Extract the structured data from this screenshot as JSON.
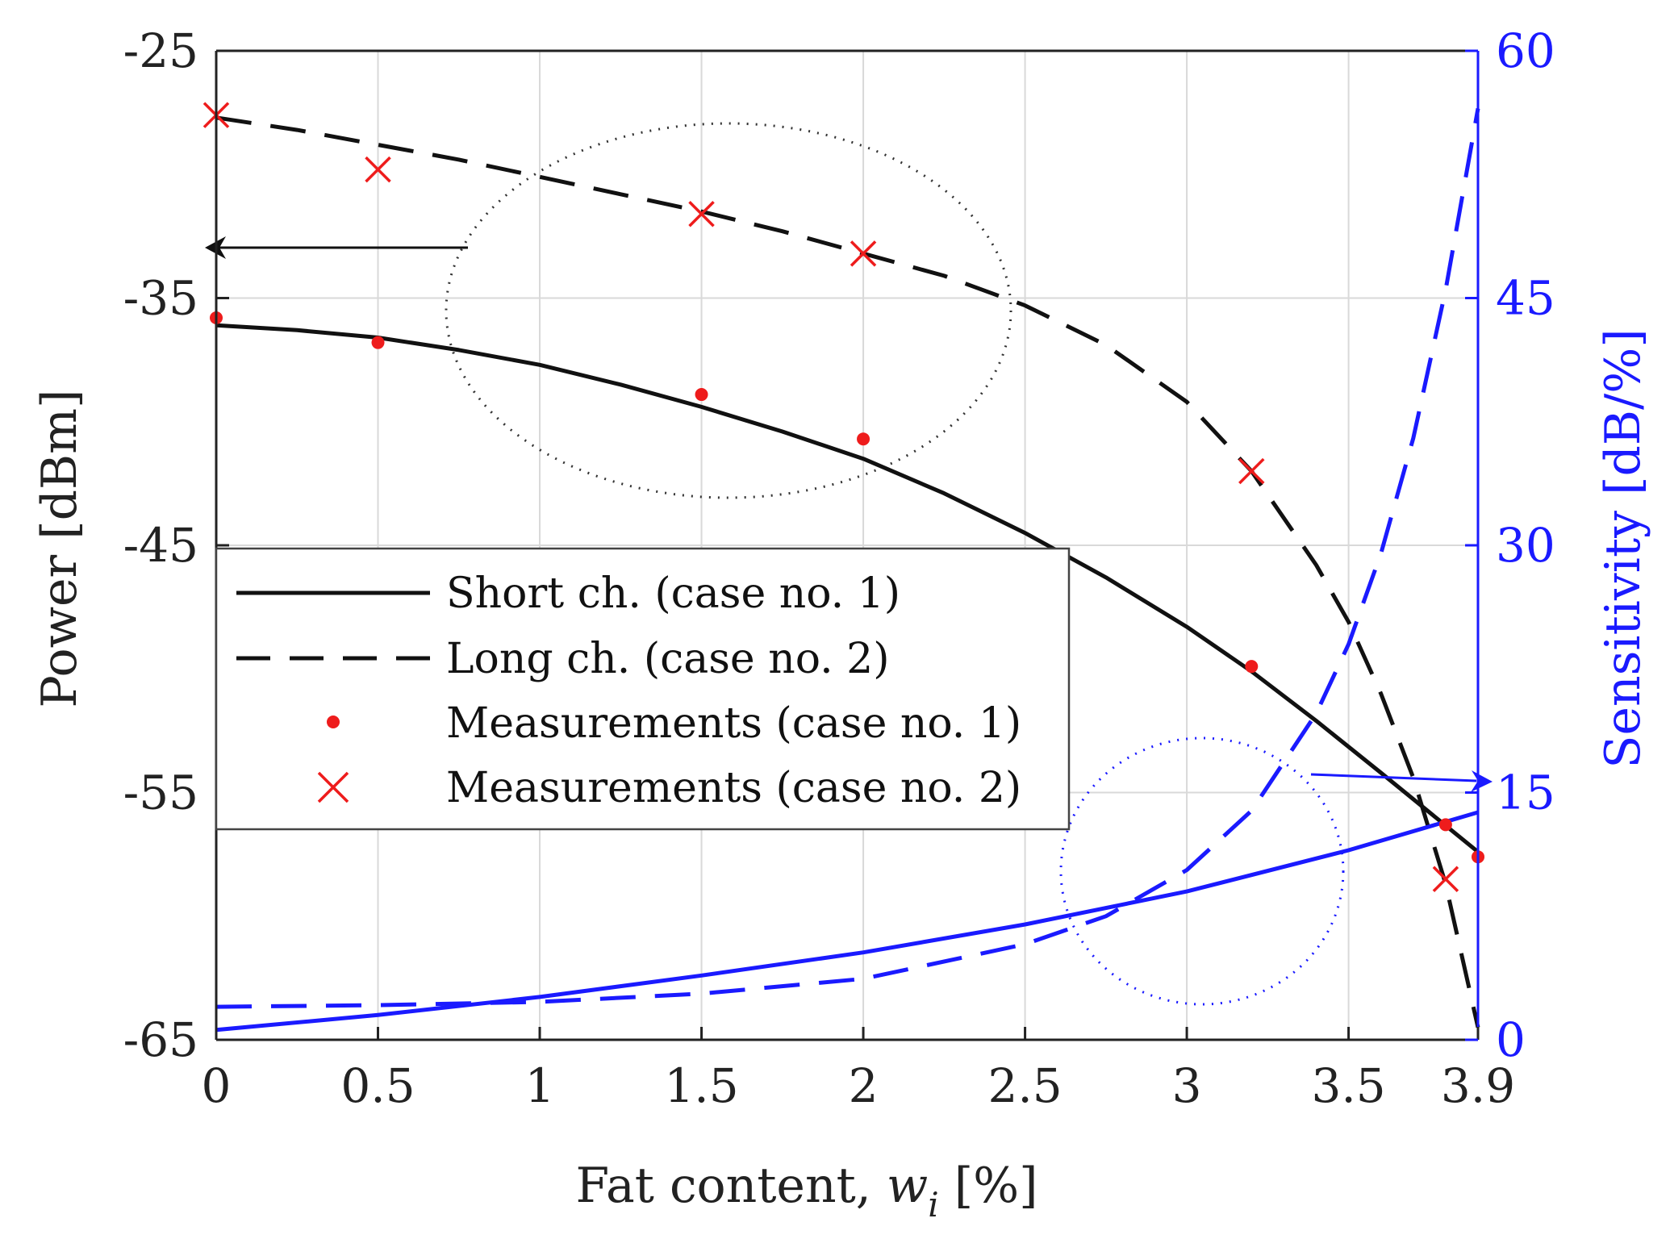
{
  "colors": {
    "black": "#111111",
    "blue": "#1a1aff",
    "red": "#ee1c1c",
    "grid": "#d9d9d9",
    "axis": "#222222"
  },
  "chart_data": {
    "type": "line",
    "xlabel_prefix": "Fat content, ",
    "xlabel_var": "w",
    "xlabel_sub": "i",
    "xlabel_suffix": " [%]",
    "ylabel_left": "Power [dBm]",
    "ylabel_right": "Sensitivity [dB/%]",
    "xlim": [
      0,
      3.9
    ],
    "ylim_left": [
      -65,
      -25
    ],
    "ylim_right": [
      0,
      60
    ],
    "x_ticks": [
      0,
      0.5,
      1,
      1.5,
      2,
      2.5,
      3,
      3.5,
      3.9
    ],
    "x_tick_labels": [
      "0",
      "0.5",
      "1",
      "1.5",
      "2",
      "2.5",
      "3",
      "3.5",
      "3.9"
    ],
    "y_left_ticks": [
      -25,
      -35,
      -45,
      -55,
      -65
    ],
    "y_left_tick_labels": [
      "-25",
      "-35",
      "-45",
      "-55",
      "-65"
    ],
    "y_right_ticks": [
      60,
      45,
      30,
      15,
      0
    ],
    "y_right_tick_labels": [
      "60",
      "45",
      "30",
      "15",
      "0"
    ],
    "grid": true,
    "legend_position": "center-left",
    "legend": [
      {
        "label": "Short ch. (case no. 1)",
        "style": "solid-line"
      },
      {
        "label": "Long ch. (case no. 2)",
        "style": "dashed-line"
      },
      {
        "label": "Measurements (case no. 1)",
        "style": "red-dot"
      },
      {
        "label": "Measurements (case no. 2)",
        "style": "red-cross"
      }
    ],
    "series": [
      {
        "name": "Short ch. (case no. 1) power",
        "axis": "left",
        "style": "solid",
        "color": "#111111",
        "x": [
          0,
          0.25,
          0.5,
          0.75,
          1.0,
          1.25,
          1.5,
          1.75,
          2.0,
          2.25,
          2.5,
          2.75,
          3.0,
          3.2,
          3.4,
          3.6,
          3.75,
          3.9
        ],
        "y": [
          -36.1,
          -36.3,
          -36.6,
          -37.1,
          -37.7,
          -38.5,
          -39.4,
          -40.4,
          -41.5,
          -42.9,
          -44.5,
          -46.3,
          -48.3,
          -50.1,
          -52.1,
          -54.2,
          -55.8,
          -57.4
        ]
      },
      {
        "name": "Long ch. (case no. 2) power",
        "axis": "left",
        "style": "dashed",
        "color": "#111111",
        "x": [
          0,
          0.25,
          0.5,
          0.75,
          1.0,
          1.25,
          1.5,
          1.75,
          2.0,
          2.25,
          2.5,
          2.75,
          3.0,
          3.2,
          3.4,
          3.5,
          3.6,
          3.7,
          3.8,
          3.9
        ],
        "y": [
          -27.7,
          -28.2,
          -28.8,
          -29.4,
          -30.1,
          -30.8,
          -31.5,
          -32.3,
          -33.2,
          -34.1,
          -35.3,
          -36.9,
          -39.2,
          -42.0,
          -45.8,
          -48.1,
          -51.0,
          -54.4,
          -58.7,
          -64.5
        ]
      },
      {
        "name": "Short ch. (case no. 1) sensitivity",
        "axis": "right",
        "style": "solid",
        "color": "#1a1aff",
        "x": [
          0,
          0.5,
          1.0,
          1.5,
          2.0,
          2.5,
          3.0,
          3.5,
          3.9
        ],
        "y": [
          0.6,
          1.5,
          2.6,
          3.9,
          5.3,
          7.0,
          9.0,
          11.5,
          13.8
        ]
      },
      {
        "name": "Long ch. (case no. 2) sensitivity",
        "axis": "right",
        "style": "dashed",
        "color": "#1a1aff",
        "x": [
          0,
          0.5,
          1.0,
          1.5,
          2.0,
          2.5,
          2.75,
          3.0,
          3.2,
          3.4,
          3.5,
          3.6,
          3.7,
          3.8,
          3.9
        ],
        "y": [
          2.0,
          2.1,
          2.3,
          2.8,
          3.7,
          5.8,
          7.5,
          10.3,
          13.9,
          19.8,
          24.0,
          29.5,
          36.5,
          45.5,
          56.5
        ]
      }
    ],
    "measurements": [
      {
        "name": "Measurements (case no. 1)",
        "marker": "dot",
        "color": "#ee1c1c",
        "x": [
          0,
          0.5,
          1.5,
          2.0,
          3.2,
          3.8,
          3.9
        ],
        "y": [
          -35.8,
          -36.8,
          -38.9,
          -40.7,
          -49.9,
          -56.3,
          -57.6
        ]
      },
      {
        "name": "Measurements (case no. 2)",
        "marker": "cross",
        "color": "#ee1c1c",
        "x": [
          0,
          0.5,
          1.5,
          2.0,
          3.2,
          3.8
        ],
        "y": [
          -27.6,
          -29.8,
          -31.6,
          -33.2,
          -42.0,
          -58.5
        ]
      }
    ]
  }
}
